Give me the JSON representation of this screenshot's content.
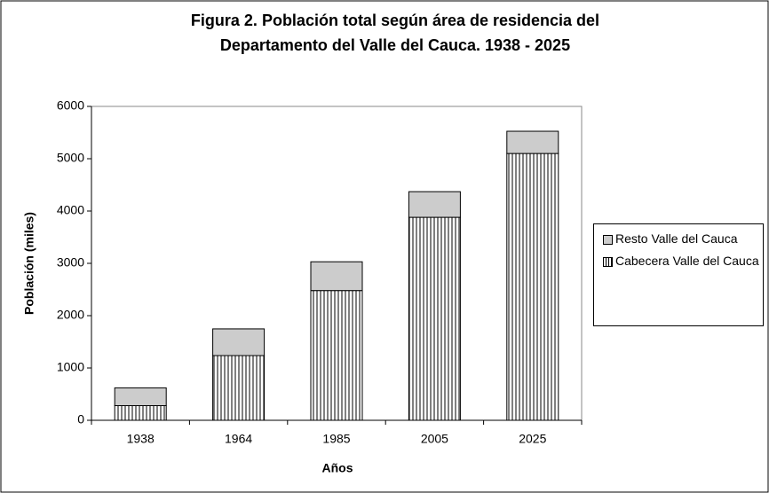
{
  "chart_data": {
    "type": "stacked-bar",
    "title": [
      "Figura 2. Población total según área de residencia del",
      "Departamento del Valle del Cauca. 1938 - 2025"
    ],
    "x_label": "Años",
    "y_label": "Población (miles)",
    "categories": [
      "1938",
      "1964",
      "1985",
      "2005",
      "2025"
    ],
    "series": [
      {
        "name": "Cabecera Valle del Cauca",
        "color": "#000000",
        "pattern": "vertical-hatch",
        "values": [
          280,
          1237,
          2480,
          3880,
          5100
        ]
      },
      {
        "name": "Resto Valle del Cauca",
        "color": "#cccccc",
        "values": [
          340,
          510,
          550,
          490,
          425
        ]
      }
    ],
    "ylim": [
      0,
      6000
    ],
    "yticks": [
      0,
      1000,
      2000,
      3000,
      4000,
      5000,
      6000
    ],
    "grid": false
  }
}
